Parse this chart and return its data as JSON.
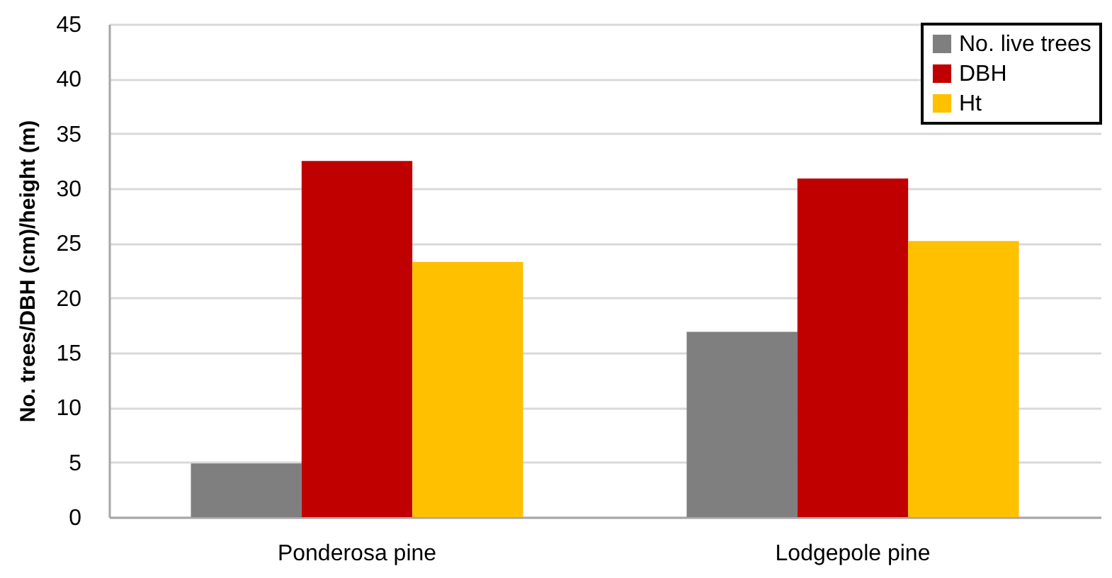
{
  "chart_data": {
    "type": "bar",
    "ylabel": "No. trees/DBH (cm)/height (m)",
    "categories": [
      "Ponderosa pine",
      "Lodgepole pine"
    ],
    "series": [
      {
        "name": "No. live trees",
        "color": "#7f7f7f",
        "values": [
          4.9,
          16.9
        ]
      },
      {
        "name": "DBH",
        "color": "#c00000",
        "values": [
          32.5,
          30.9
        ]
      },
      {
        "name": "Ht",
        "color": "#ffc000",
        "values": [
          23.3,
          25.2
        ]
      }
    ],
    "ylim": [
      0,
      45
    ],
    "yticks": [
      0,
      5,
      10,
      15,
      20,
      25,
      30,
      35,
      40,
      45
    ],
    "grid": "y",
    "legend": "top right"
  }
}
